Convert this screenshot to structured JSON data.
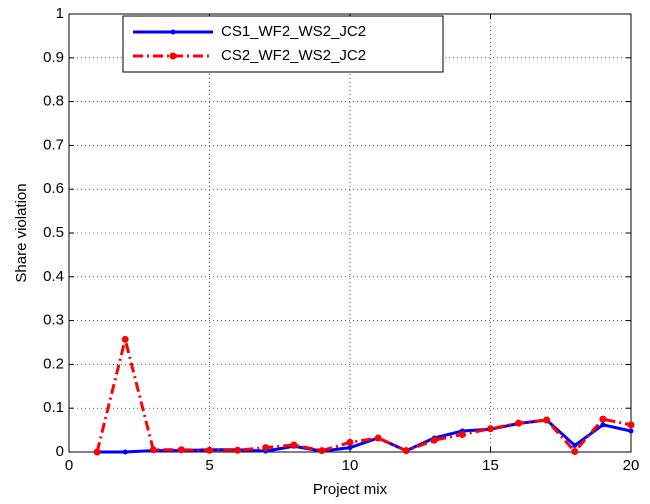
{
  "chart_data": {
    "type": "line",
    "xlabel": "Project mix",
    "ylabel": "Share violation",
    "x": [
      1,
      2,
      3,
      4,
      5,
      6,
      7,
      8,
      9,
      10,
      11,
      12,
      13,
      14,
      15,
      16,
      17,
      18,
      19,
      20
    ],
    "series": [
      {
        "name": "CS1_WF2_WS2_JC2",
        "color": "#0000ff",
        "linestyle": "solid",
        "values": [
          0,
          0,
          0.003,
          0.003,
          0.005,
          0.005,
          0.002,
          0.013,
          0.002,
          0.01,
          0.032,
          0.003,
          0.032,
          0.048,
          0.052,
          0.065,
          0.073,
          0.015,
          0.062,
          0.048
        ]
      },
      {
        "name": "CS2_WF2_WS2_JC2",
        "color": "#ff0000",
        "linestyle": "dash-dot",
        "values": [
          0,
          0.257,
          0.005,
          0.005,
          0.004,
          0.004,
          0.01,
          0.016,
          0.003,
          0.022,
          0.032,
          0.003,
          0.027,
          0.04,
          0.053,
          0.066,
          0.073,
          0.001,
          0.075,
          0.062
        ]
      }
    ],
    "xlim": [
      0,
      20
    ],
    "xticks": [
      0,
      5,
      10,
      15,
      20
    ],
    "ylim": [
      0,
      1
    ],
    "yticks": [
      0,
      0.1,
      0.2,
      0.3,
      0.4,
      0.5,
      0.6,
      0.7,
      0.8,
      0.9,
      1
    ],
    "grid": true,
    "legend": "upper-left"
  }
}
